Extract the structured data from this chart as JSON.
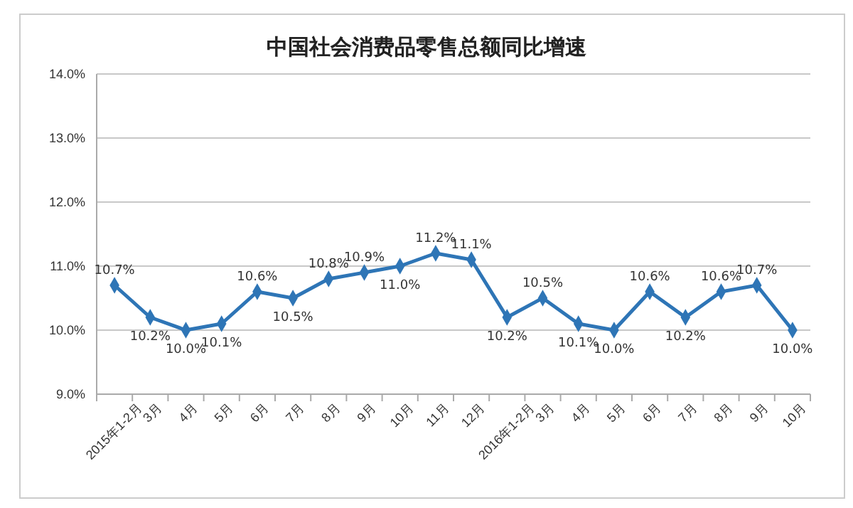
{
  "chart_data": {
    "type": "line",
    "title": "中国社会消费品零售总额同比增速",
    "categories": [
      "2015年1-2月",
      "3月",
      "4月",
      "5月",
      "6月",
      "7月",
      "8月",
      "9月",
      "10月",
      "11月",
      "12月",
      "2016年1-2月",
      "3月",
      "4月",
      "5月",
      "6月",
      "7月",
      "8月",
      "9月",
      "10月"
    ],
    "series": [
      {
        "color": "#2e75b6",
        "values": [
          10.7,
          10.2,
          10.0,
          10.1,
          10.6,
          10.5,
          10.8,
          10.9,
          11.0,
          11.2,
          11.1,
          10.2,
          10.5,
          10.1,
          10.0,
          10.6,
          10.2,
          10.6,
          10.7,
          10.0
        ],
        "value_labels": [
          "10.7%",
          "10.2%",
          "10.0%",
          "10.1%",
          "10.6%",
          "10.5%",
          "10.8%",
          "10.9%",
          "11.0%",
          "11.2%",
          "11.1%",
          "10.2%",
          "10.5%",
          "10.1%",
          "10.0%",
          "10.6%",
          "10.2%",
          "10.6%",
          "10.7%",
          "10.0%"
        ]
      }
    ],
    "ylim": [
      9,
      14
    ],
    "yticks": [
      {
        "value": 9,
        "label": "9.0%"
      },
      {
        "value": 10,
        "label": "10.0%"
      },
      {
        "value": 11,
        "label": "11.0%"
      },
      {
        "value": 12,
        "label": "12.0%"
      },
      {
        "value": 13,
        "label": "13.0%"
      },
      {
        "value": 14,
        "label": "14.0%"
      }
    ],
    "grid": "y",
    "marker": "diamond",
    "line_style": "solid"
  }
}
